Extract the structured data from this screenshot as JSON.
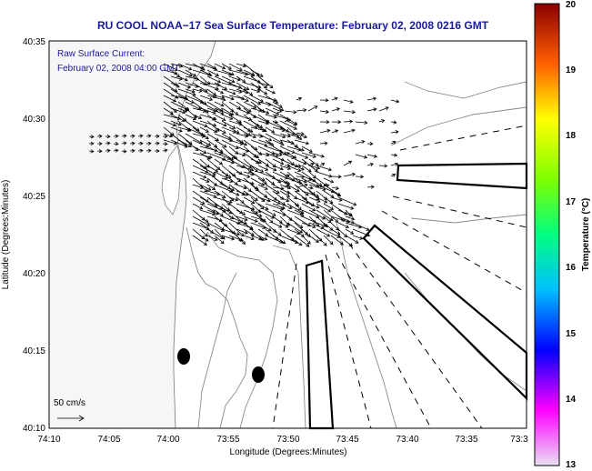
{
  "chart_data": {
    "type": "map",
    "title": "RU COOL  NOAA−17  Sea Surface Temperature:  February 02, 2008 0216 GMT",
    "subtitle_lines": [
      "Raw Surface Current:",
      "February 02, 2008 04:00 GMT"
    ],
    "xlabel": "Longitude (Degrees:Minutes)",
    "ylabel": "Latitude (Degrees:Minutes)",
    "x_ticks": [
      "74:10",
      "74:05",
      "74:00",
      "73:55",
      "73:50",
      "73:45",
      "73:40",
      "73:35",
      "73:3"
    ],
    "y_ticks": [
      "40:35",
      "40:30",
      "40:25",
      "40:20",
      "40:15",
      "40:10"
    ],
    "xlim_minutes_west": [
      10,
      -30
    ],
    "ylim_minutes": [
      10,
      35
    ],
    "colorbar": {
      "label": "Temperature (°C)",
      "ticks": [
        "20",
        "19",
        "18",
        "17",
        "16",
        "15",
        "14",
        "13"
      ],
      "range": [
        13,
        20
      ],
      "colormap": [
        "#d8d8f0",
        "#ff00ff",
        "#0000ff",
        "#00ffff",
        "#00ff00",
        "#ffff00",
        "#ff8000",
        "#ff0000",
        "#8b0000"
      ]
    },
    "scale_vector": "50 cm/s",
    "colors": {
      "title": "#1a1a9c",
      "land": "#f6f6f6",
      "contour": "#888888",
      "lines": "#000000"
    }
  }
}
